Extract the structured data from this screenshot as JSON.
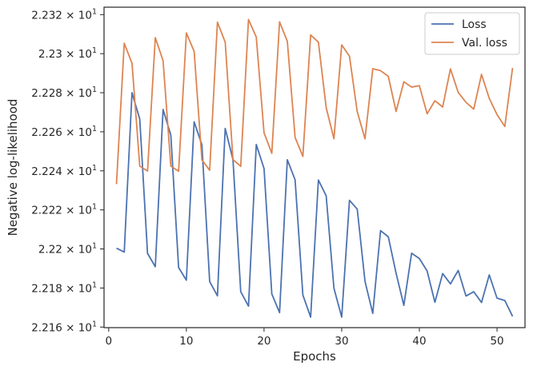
{
  "chart_data": {
    "type": "line",
    "xlabel": "Epochs",
    "ylabel": "Negative log-likelihood",
    "xlim": [
      -0.6,
      53.6
    ],
    "ylim": [
      22.1597,
      22.3238
    ],
    "xticks": [
      0,
      10,
      20,
      30,
      40,
      50
    ],
    "xtick_labels": [
      "0",
      "10",
      "20",
      "30",
      "40",
      "50"
    ],
    "yticks": [
      22.16,
      22.18,
      22.2,
      22.22,
      22.24,
      22.26,
      22.28,
      22.3,
      22.32
    ],
    "ytick_labels": [
      {
        "mantissa": "2.216",
        "exp": "1"
      },
      {
        "mantissa": "2.218",
        "exp": "1"
      },
      {
        "mantissa": "2.22",
        "exp": "1"
      },
      {
        "mantissa": "2.222",
        "exp": "1"
      },
      {
        "mantissa": "2.224",
        "exp": "1"
      },
      {
        "mantissa": "2.226",
        "exp": "1"
      },
      {
        "mantissa": "2.228",
        "exp": "1"
      },
      {
        "mantissa": "2.23",
        "exp": "1"
      },
      {
        "mantissa": "2.232",
        "exp": "1"
      }
    ],
    "grid": false,
    "legend_position": "top-right",
    "x": [
      1,
      2,
      3,
      4,
      5,
      6,
      7,
      8,
      9,
      10,
      11,
      12,
      13,
      14,
      15,
      16,
      17,
      18,
      19,
      20,
      21,
      22,
      23,
      24,
      25,
      26,
      27,
      28,
      29,
      30,
      31,
      32,
      33,
      34,
      35,
      36,
      37,
      38,
      39,
      40,
      41,
      42,
      43,
      44,
      45,
      46,
      47,
      48,
      49,
      50,
      51,
      52
    ],
    "series": [
      {
        "name": "Loss",
        "color": "#4c72b0",
        "values": [
          22.2004,
          22.1984,
          22.28,
          22.2665,
          22.1977,
          22.1909,
          22.2714,
          22.2583,
          22.1905,
          22.184,
          22.2651,
          22.2534,
          22.1833,
          22.176,
          22.2617,
          22.2458,
          22.1781,
          22.1707,
          22.2535,
          22.2412,
          22.177,
          22.1674,
          22.2457,
          22.2354,
          22.1764,
          22.1651,
          22.2353,
          22.2272,
          22.1799,
          22.1651,
          22.2249,
          22.2204,
          22.1834,
          22.167,
          22.2094,
          22.2062,
          22.1876,
          22.1711,
          22.1978,
          22.1951,
          22.1887,
          22.1727,
          22.1874,
          22.1821,
          22.189,
          22.1759,
          22.1781,
          22.1726,
          22.1867,
          22.1748,
          22.1736,
          22.1655
        ]
      },
      {
        "name": "Val. loss",
        "color": "#dd8452",
        "values": [
          22.2332,
          22.3053,
          22.2951,
          22.2424,
          22.2399,
          22.3082,
          22.2964,
          22.2424,
          22.2398,
          22.3106,
          22.3012,
          22.2456,
          22.2403,
          22.3161,
          22.3059,
          22.2458,
          22.2423,
          22.3175,
          22.3085,
          22.2595,
          22.249,
          22.3163,
          22.3063,
          22.2571,
          22.2474,
          22.3096,
          22.3059,
          22.2724,
          22.2564,
          22.3045,
          22.2987,
          22.2703,
          22.2564,
          22.2923,
          22.2913,
          22.2884,
          22.2704,
          22.2856,
          22.2829,
          22.2836,
          22.2692,
          22.2759,
          22.2727,
          22.2922,
          22.2802,
          22.2751,
          22.2716,
          22.2894,
          22.2771,
          22.2688,
          22.2627,
          22.2927
        ]
      }
    ]
  }
}
